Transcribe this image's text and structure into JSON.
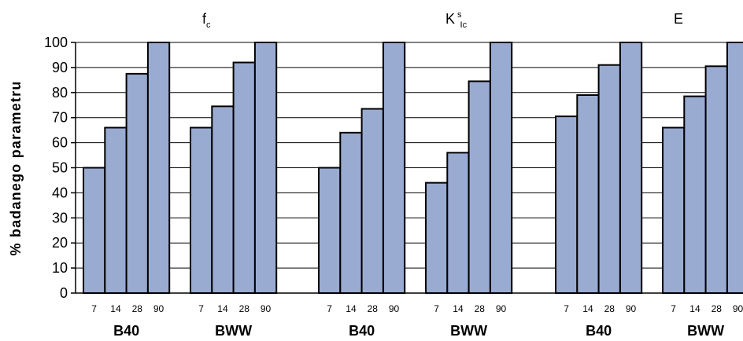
{
  "chart_data": {
    "type": "bar",
    "ylabel": "% badanego parametru",
    "ylim": [
      0,
      100
    ],
    "yticks": [
      "0",
      "10",
      "20",
      "30",
      "40",
      "50",
      "60",
      "70",
      "80",
      "90",
      "100"
    ],
    "grid": "horizontal",
    "bar_color": "#9aabd2",
    "panels": [
      {
        "title": {
          "base": "f",
          "sub": "c"
        },
        "groups": [
          {
            "label": "B40",
            "categories": [
              "7",
              "14",
              "28",
              "90"
            ],
            "values": [
              50,
              66,
              87.5,
              100
            ]
          },
          {
            "label": "BWW",
            "categories": [
              "7",
              "14",
              "28",
              "90"
            ],
            "values": [
              66,
              74.5,
              92,
              100
            ]
          }
        ]
      },
      {
        "title": {
          "base": "K",
          "sup": "s",
          "sub": "Ic"
        },
        "groups": [
          {
            "label": "B40",
            "categories": [
              "7",
              "14",
              "28",
              "90"
            ],
            "values": [
              50,
              64,
              73.5,
              100
            ]
          },
          {
            "label": "BWW",
            "categories": [
              "7",
              "14",
              "28",
              "90"
            ],
            "values": [
              44,
              56,
              84.5,
              100
            ]
          }
        ]
      },
      {
        "title": {
          "base": "E"
        },
        "groups": [
          {
            "label": "B40",
            "categories": [
              "7",
              "14",
              "28",
              "90"
            ],
            "values": [
              70.5,
              79,
              91,
              100
            ]
          },
          {
            "label": "BWW",
            "categories": [
              "7",
              "14",
              "28",
              "90"
            ],
            "values": [
              66,
              78.5,
              90.5,
              100
            ]
          }
        ]
      }
    ]
  }
}
